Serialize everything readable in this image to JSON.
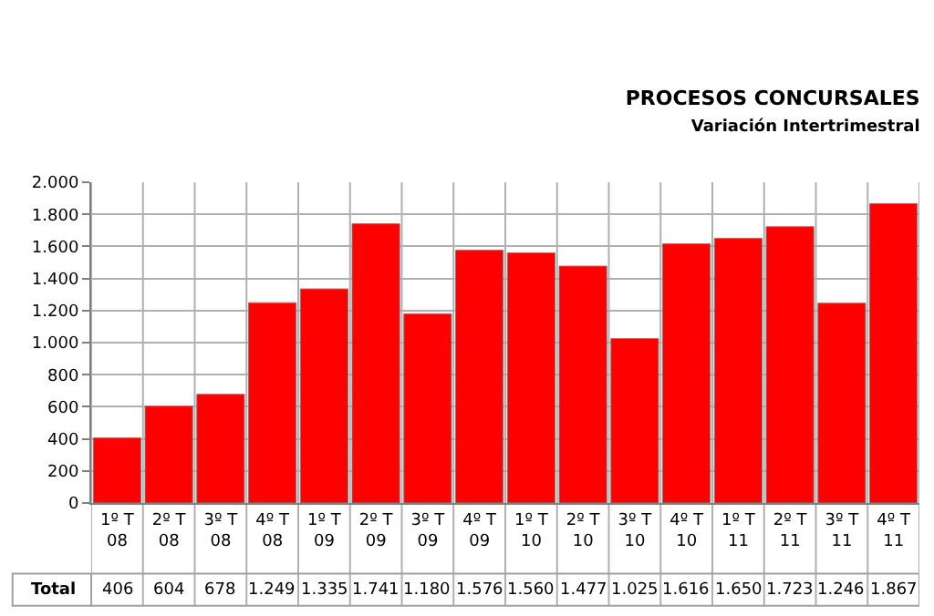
{
  "chart_data": {
    "type": "bar",
    "title": "PROCESOS CONCURSALES",
    "subtitle": "Variación Intertrimestral",
    "categories": [
      "1º T 08",
      "2º T 08",
      "3º T 08",
      "4º T 08",
      "1º T 09",
      "2º T 09",
      "3º T 09",
      "4º T 09",
      "1º T 10",
      "2º T 10",
      "3º T 10",
      "4º T 10",
      "1º T 11",
      "2º T 11",
      "3º T 11",
      "4º T 11"
    ],
    "series": [
      {
        "name": "Total",
        "color": "#ff0000",
        "values": [
          406,
          604,
          678,
          1249,
          1335,
          1741,
          1180,
          1576,
          1560,
          1477,
          1025,
          1616,
          1650,
          1723,
          1246,
          1867
        ],
        "value_labels": [
          "406",
          "604",
          "678",
          "1.249",
          "1.335",
          "1.741",
          "1.180",
          "1.576",
          "1.560",
          "1.477",
          "1.025",
          "1.616",
          "1.650",
          "1.723",
          "1.246",
          "1.867"
        ]
      }
    ],
    "ylim": [
      0,
      2000
    ],
    "yticks": [
      0,
      {
        "value": 200,
        "label": "200"
      },
      {
        "value": 400,
        "label": "400"
      },
      {
        "value": 600,
        "label": "600"
      },
      {
        "value": 800,
        "label": "800"
      },
      {
        "value": 1000,
        "label": "1.000"
      },
      {
        "value": 1200,
        "label": "1.200"
      },
      {
        "value": 1400,
        "label": "1.400"
      },
      {
        "value": 1600,
        "label": "1.600"
      },
      {
        "value": 1800,
        "label": "1.800"
      },
      {
        "value": 2000,
        "label": "2.000"
      }
    ],
    "grid": true,
    "legend": false
  }
}
